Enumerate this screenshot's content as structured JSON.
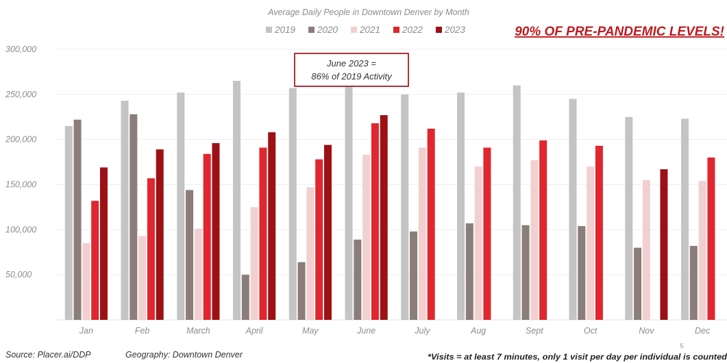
{
  "chart_data": {
    "type": "bar",
    "title": "Average Daily People in Downtown Denver by Month",
    "categories": [
      "Jan",
      "Feb",
      "March",
      "April",
      "May",
      "June",
      "July",
      "Aug",
      "Sept",
      "Oct",
      "Nov",
      "Dec"
    ],
    "series": [
      {
        "name": "2019",
        "color": "#c4c4c4",
        "values": [
          215000,
          243000,
          252000,
          265000,
          257000,
          262000,
          250000,
          252000,
          260000,
          245000,
          225000,
          223000
        ]
      },
      {
        "name": "2020",
        "color": "#8a7d7b",
        "values": [
          222000,
          228000,
          144000,
          50000,
          64000,
          89000,
          98000,
          107000,
          105000,
          104000,
          80000,
          82000
        ]
      },
      {
        "name": "2021",
        "color": "#f2cfd0",
        "values": [
          85000,
          93000,
          101000,
          125000,
          147000,
          183000,
          191000,
          170000,
          177000,
          170000,
          155000,
          154000
        ]
      },
      {
        "name": "2022",
        "color": "#e0262e",
        "values": [
          132000,
          157000,
          184000,
          191000,
          178000,
          218000,
          212000,
          191000,
          199000,
          193000,
          null,
          180000
        ]
      },
      {
        "name": "2023",
        "color": "#9b1116",
        "values": [
          169000,
          189000,
          196000,
          208000,
          194000,
          227000,
          null,
          null,
          null,
          null,
          167000,
          null
        ]
      }
    ],
    "ylim": [
      0,
      300000
    ],
    "yticks": [
      50000,
      100000,
      150000,
      200000,
      250000,
      300000
    ],
    "ytick_labels": [
      "50,000",
      "100,000",
      "150,000",
      "200,000",
      "250,000",
      "300,000"
    ],
    "grid": true,
    "legend_position": "top-center"
  },
  "annotation": {
    "line1": "June 2023 =",
    "line2": "86% of 2019 Activity"
  },
  "headline": "90% OF PRE-PANDEMIC LEVELS!",
  "footer": {
    "source": "Source: Placer.ai/DDP",
    "geography": "Geography: Downtown Denver",
    "note": "*Visits = at least 7 minutes, only 1 visit per day per individual is counted",
    "page_number": "5"
  },
  "colors": {
    "headline": "#c0191f",
    "annotation_border": "#a31b1f",
    "axis_text": "#8c8c8c"
  }
}
